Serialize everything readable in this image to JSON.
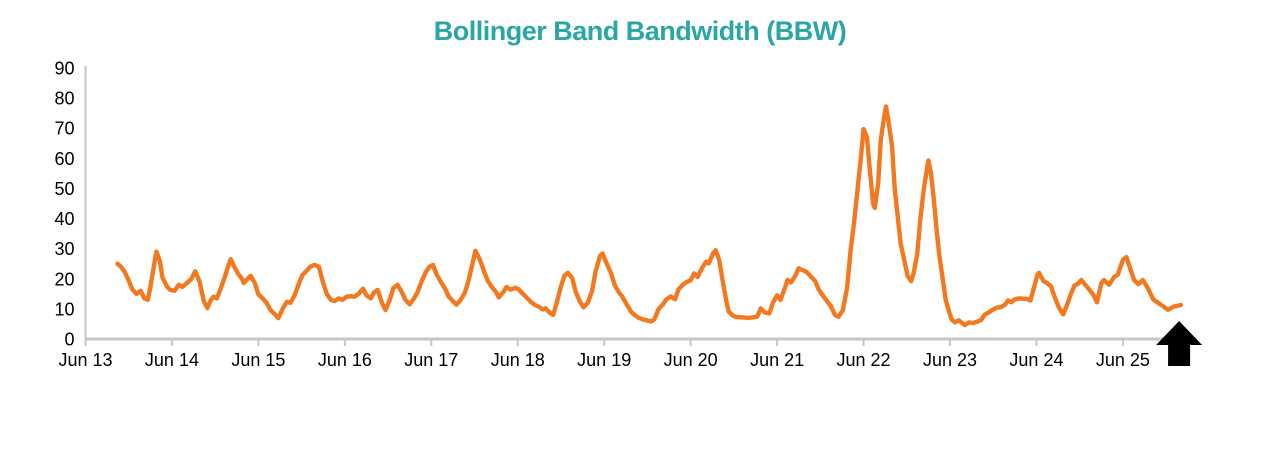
{
  "title": {
    "text": "Bollinger Band Bandwidth (BBW)",
    "color": "#2AA6A6"
  },
  "colors": {
    "line": "#F2791F",
    "axis": "#C6C6C6",
    "tick_text": "#000000",
    "arrow": "#000000",
    "background": "#FFFFFF"
  },
  "chart_data": {
    "type": "line",
    "title": "Bollinger Band Bandwidth (BBW)",
    "xlabel": "",
    "ylabel": "",
    "grid": false,
    "legend": "none",
    "ylim": [
      0,
      90
    ],
    "y_ticks": [
      0,
      10,
      20,
      30,
      40,
      50,
      60,
      70,
      80,
      90
    ],
    "x_tick_labels": [
      "Jun 13",
      "Jun 14",
      "Jun 15",
      "Jun 16",
      "Jun 17",
      "Jun 18",
      "Jun 19",
      "Jun 20",
      "Jun 21",
      "Jun 22",
      "Jun 23",
      "Jun 24",
      "Jun 25"
    ],
    "series": [
      {
        "name": "BBW",
        "color": "#F2791F",
        "points": [
          [
            0.37,
            25
          ],
          [
            0.41,
            24
          ],
          [
            0.45,
            22.5
          ],
          [
            0.5,
            19.5
          ],
          [
            0.54,
            16.5
          ],
          [
            0.59,
            15
          ],
          [
            0.64,
            16
          ],
          [
            0.68,
            13.5
          ],
          [
            0.72,
            13
          ],
          [
            0.75,
            17
          ],
          [
            0.79,
            24
          ],
          [
            0.82,
            29
          ],
          [
            0.86,
            26
          ],
          [
            0.89,
            20.5
          ],
          [
            0.94,
            17.5
          ],
          [
            0.98,
            16.3
          ],
          [
            1.03,
            16
          ],
          [
            1.08,
            18
          ],
          [
            1.12,
            17.3
          ],
          [
            1.17,
            18.5
          ],
          [
            1.22,
            19.8
          ],
          [
            1.27,
            22.5
          ],
          [
            1.32,
            19
          ],
          [
            1.37,
            12.5
          ],
          [
            1.41,
            10.3
          ],
          [
            1.45,
            13
          ],
          [
            1.48,
            14
          ],
          [
            1.52,
            13.5
          ],
          [
            1.56,
            16.5
          ],
          [
            1.61,
            20.5
          ],
          [
            1.66,
            25
          ],
          [
            1.68,
            26.5
          ],
          [
            1.72,
            24
          ],
          [
            1.77,
            21.5
          ],
          [
            1.81,
            20
          ],
          [
            1.83,
            18.6
          ],
          [
            1.86,
            19.5
          ],
          [
            1.91,
            21
          ],
          [
            1.96,
            18.5
          ],
          [
            2.0,
            14.8
          ],
          [
            2.05,
            13.5
          ],
          [
            2.09,
            12.2
          ],
          [
            2.14,
            9.6
          ],
          [
            2.19,
            8.2
          ],
          [
            2.23,
            6.9
          ],
          [
            2.28,
            10
          ],
          [
            2.33,
            12.4
          ],
          [
            2.37,
            12
          ],
          [
            2.42,
            14.5
          ],
          [
            2.47,
            18.5
          ],
          [
            2.51,
            21.3
          ],
          [
            2.56,
            22.7
          ],
          [
            2.6,
            24
          ],
          [
            2.65,
            24.6
          ],
          [
            2.7,
            24
          ],
          [
            2.74,
            19.5
          ],
          [
            2.79,
            15
          ],
          [
            2.84,
            13
          ],
          [
            2.88,
            12.6
          ],
          [
            2.93,
            13.5
          ],
          [
            2.97,
            13
          ],
          [
            3.02,
            14
          ],
          [
            3.07,
            14.2
          ],
          [
            3.11,
            14
          ],
          [
            3.16,
            15
          ],
          [
            3.21,
            16.7
          ],
          [
            3.25,
            14.5
          ],
          [
            3.3,
            13.5
          ],
          [
            3.34,
            15.5
          ],
          [
            3.38,
            16.3
          ],
          [
            3.43,
            12
          ],
          [
            3.47,
            9.6
          ],
          [
            3.52,
            13
          ],
          [
            3.56,
            16.9
          ],
          [
            3.61,
            18
          ],
          [
            3.66,
            15.5
          ],
          [
            3.7,
            13
          ],
          [
            3.75,
            11.5
          ],
          [
            3.8,
            13.5
          ],
          [
            3.84,
            15.5
          ],
          [
            3.89,
            19.3
          ],
          [
            3.94,
            22.4
          ],
          [
            3.98,
            24
          ],
          [
            4.02,
            24.6
          ],
          [
            4.06,
            21.5
          ],
          [
            4.11,
            19
          ],
          [
            4.16,
            16.7
          ],
          [
            4.2,
            14.1
          ],
          [
            4.25,
            12.6
          ],
          [
            4.29,
            11.4
          ],
          [
            4.34,
            13
          ],
          [
            4.39,
            15.5
          ],
          [
            4.43,
            19.3
          ],
          [
            4.48,
            25.5
          ],
          [
            4.51,
            29.3
          ],
          [
            4.56,
            26.5
          ],
          [
            4.61,
            22.5
          ],
          [
            4.65,
            19.5
          ],
          [
            4.7,
            17.3
          ],
          [
            4.75,
            15.5
          ],
          [
            4.78,
            13.8
          ],
          [
            4.83,
            15.5
          ],
          [
            4.87,
            17.3
          ],
          [
            4.92,
            16.4
          ],
          [
            4.97,
            17
          ],
          [
            5.01,
            16.5
          ],
          [
            5.06,
            15
          ],
          [
            5.1,
            13.8
          ],
          [
            5.15,
            12.4
          ],
          [
            5.2,
            11.3
          ],
          [
            5.24,
            10.8
          ],
          [
            5.29,
            9.8
          ],
          [
            5.32,
            10.2
          ],
          [
            5.37,
            8.8
          ],
          [
            5.41,
            8
          ],
          [
            5.45,
            12
          ],
          [
            5.5,
            17.5
          ],
          [
            5.54,
            21
          ],
          [
            5.58,
            22
          ],
          [
            5.63,
            20.2
          ],
          [
            5.67,
            15.7
          ],
          [
            5.72,
            12.4
          ],
          [
            5.76,
            10.5
          ],
          [
            5.81,
            12
          ],
          [
            5.86,
            16
          ],
          [
            5.9,
            22.4
          ],
          [
            5.95,
            27.5
          ],
          [
            5.98,
            28.4
          ],
          [
            6.03,
            25
          ],
          [
            6.08,
            21.8
          ],
          [
            6.12,
            18
          ],
          [
            6.17,
            15.5
          ],
          [
            6.21,
            14
          ],
          [
            6.26,
            11.5
          ],
          [
            6.31,
            9.1
          ],
          [
            6.35,
            8
          ],
          [
            6.4,
            7
          ],
          [
            6.45,
            6.5
          ],
          [
            6.49,
            6.2
          ],
          [
            6.54,
            5.8
          ],
          [
            6.58,
            6.5
          ],
          [
            6.63,
            10
          ],
          [
            6.68,
            11.5
          ],
          [
            6.72,
            13.2
          ],
          [
            6.77,
            14.1
          ],
          [
            6.82,
            13.2
          ],
          [
            6.86,
            16.5
          ],
          [
            6.91,
            18
          ],
          [
            6.95,
            18.9
          ],
          [
            7.0,
            19.5
          ],
          [
            7.04,
            21.8
          ],
          [
            7.08,
            20.6
          ],
          [
            7.13,
            23.5
          ],
          [
            7.18,
            25.7
          ],
          [
            7.21,
            25.1
          ],
          [
            7.26,
            28.5
          ],
          [
            7.29,
            29.5
          ],
          [
            7.33,
            26.2
          ],
          [
            7.37,
            19.5
          ],
          [
            7.41,
            13
          ],
          [
            7.44,
            9.1
          ],
          [
            7.49,
            7.7
          ],
          [
            7.53,
            7.3
          ],
          [
            7.58,
            7.2
          ],
          [
            7.63,
            7.1
          ],
          [
            7.67,
            7
          ],
          [
            7.72,
            7.2
          ],
          [
            7.77,
            7.4
          ],
          [
            7.81,
            10.2
          ],
          [
            7.86,
            8.8
          ],
          [
            7.91,
            8.5
          ],
          [
            7.95,
            12
          ],
          [
            8.0,
            14.5
          ],
          [
            8.04,
            13
          ],
          [
            8.09,
            17
          ],
          [
            8.12,
            19.6
          ],
          [
            8.16,
            18.8
          ],
          [
            8.21,
            21
          ],
          [
            8.25,
            23.5
          ],
          [
            8.3,
            22.8
          ],
          [
            8.34,
            22.3
          ],
          [
            8.39,
            20.8
          ],
          [
            8.44,
            19.3
          ],
          [
            8.48,
            16.5
          ],
          [
            8.53,
            14.4
          ],
          [
            8.58,
            12.5
          ],
          [
            8.62,
            11
          ],
          [
            8.67,
            8
          ],
          [
            8.71,
            7.4
          ],
          [
            8.76,
            9.5
          ],
          [
            8.81,
            17
          ],
          [
            8.85,
            29.5
          ],
          [
            8.89,
            38.4
          ],
          [
            8.93,
            49.5
          ],
          [
            8.97,
            60.6
          ],
          [
            9.0,
            69.7
          ],
          [
            9.04,
            67
          ],
          [
            9.07,
            57
          ],
          [
            9.11,
            45
          ],
          [
            9.13,
            43.5
          ],
          [
            9.17,
            51.8
          ],
          [
            9.2,
            66.2
          ],
          [
            9.24,
            74
          ],
          [
            9.26,
            77.2
          ],
          [
            9.29,
            72
          ],
          [
            9.33,
            64
          ],
          [
            9.36,
            50
          ],
          [
            9.4,
            39.5
          ],
          [
            9.43,
            31.7
          ],
          [
            9.47,
            26.2
          ],
          [
            9.51,
            21
          ],
          [
            9.55,
            19.2
          ],
          [
            9.58,
            22
          ],
          [
            9.62,
            28
          ],
          [
            9.66,
            40.6
          ],
          [
            9.7,
            50.6
          ],
          [
            9.75,
            59.3
          ],
          [
            9.78,
            55
          ],
          [
            9.81,
            47
          ],
          [
            9.85,
            35
          ],
          [
            9.88,
            27
          ],
          [
            9.92,
            19.2
          ],
          [
            9.95,
            13
          ],
          [
            9.99,
            9
          ],
          [
            10.02,
            6.5
          ],
          [
            10.06,
            5.5
          ],
          [
            10.1,
            6.2
          ],
          [
            10.14,
            5.3
          ],
          [
            10.17,
            4.6
          ],
          [
            10.22,
            5.5
          ],
          [
            10.27,
            5.3
          ],
          [
            10.31,
            5.7
          ],
          [
            10.36,
            6.3
          ],
          [
            10.4,
            8
          ],
          [
            10.45,
            8.9
          ],
          [
            10.5,
            9.8
          ],
          [
            10.54,
            10.4
          ],
          [
            10.59,
            10.6
          ],
          [
            10.64,
            11.5
          ],
          [
            10.67,
            12.8
          ],
          [
            10.71,
            12.2
          ],
          [
            10.75,
            13.2
          ],
          [
            10.8,
            13.5
          ],
          [
            10.84,
            13.4
          ],
          [
            10.89,
            13.3
          ],
          [
            10.93,
            12.8
          ],
          [
            10.97,
            17
          ],
          [
            11.01,
            21.2
          ],
          [
            11.03,
            22
          ],
          [
            11.08,
            19.3
          ],
          [
            11.12,
            18.6
          ],
          [
            11.17,
            17.5
          ],
          [
            11.21,
            14
          ],
          [
            11.26,
            10.5
          ],
          [
            11.31,
            8.2
          ],
          [
            11.35,
            11
          ],
          [
            11.4,
            15
          ],
          [
            11.44,
            17.8
          ],
          [
            11.48,
            18.3
          ],
          [
            11.52,
            19.6
          ],
          [
            11.6,
            16.8
          ],
          [
            11.66,
            14.6
          ],
          [
            11.7,
            12.2
          ],
          [
            11.75,
            18.5
          ],
          [
            11.78,
            19.6
          ],
          [
            11.84,
            18
          ],
          [
            11.9,
            20.7
          ],
          [
            11.94,
            21.3
          ],
          [
            12.0,
            26.3
          ],
          [
            12.04,
            27.2
          ],
          [
            12.09,
            22.9
          ],
          [
            12.13,
            19.6
          ],
          [
            12.18,
            18.2
          ],
          [
            12.23,
            19.6
          ],
          [
            12.29,
            16.8
          ],
          [
            12.35,
            13.2
          ],
          [
            12.41,
            12
          ],
          [
            12.47,
            10.8
          ],
          [
            12.52,
            9.7
          ],
          [
            12.59,
            10.8
          ],
          [
            12.67,
            11.3
          ]
        ]
      }
    ],
    "annotations": [
      {
        "type": "up-arrow",
        "x": 12.65,
        "color": "#000000",
        "meaning": "marker at latest value"
      }
    ]
  }
}
